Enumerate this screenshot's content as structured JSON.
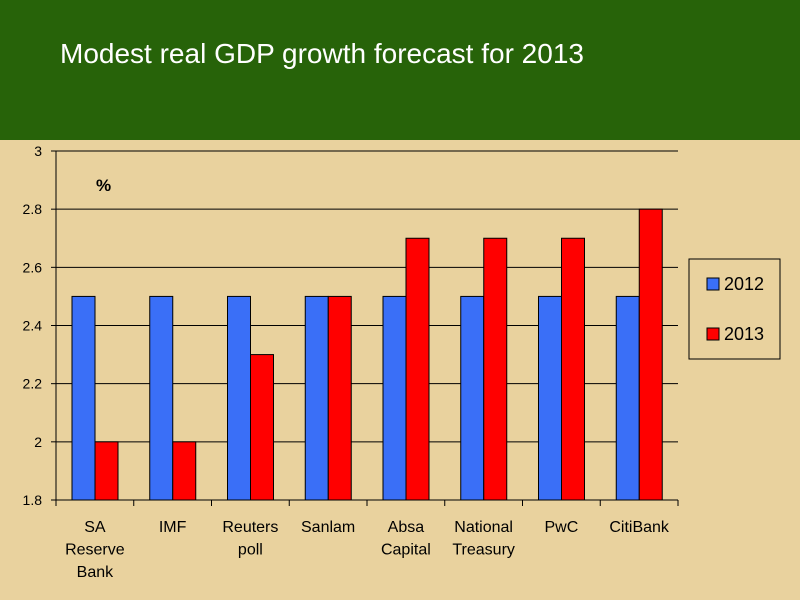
{
  "slide": {
    "title": "Modest real GDP growth forecast for 2013"
  },
  "colors": {
    "header_bg": "#276309",
    "page_bg": "#e9d29e",
    "series_2012": "#3a6ff7",
    "series_2013": "#ff0000"
  },
  "chart_data": {
    "type": "bar",
    "title": "",
    "unit_label": "%",
    "xlabel": "",
    "ylabel": "",
    "categories": [
      [
        "SA",
        "Reserve",
        "Bank"
      ],
      [
        "IMF"
      ],
      [
        "Reuters",
        "poll"
      ],
      [
        "Sanlam"
      ],
      [
        "Absa",
        "Capital"
      ],
      [
        "National",
        "Treasury"
      ],
      [
        "PwC"
      ],
      [
        "CitiBank"
      ]
    ],
    "series": [
      {
        "name": "2012",
        "color": "#3a6ff7",
        "values": [
          2.5,
          2.5,
          2.5,
          2.5,
          2.5,
          2.5,
          2.5,
          2.5
        ]
      },
      {
        "name": "2013",
        "color": "#ff0000",
        "values": [
          2.0,
          2.0,
          2.3,
          2.5,
          2.7,
          2.7,
          2.7,
          2.8
        ]
      }
    ],
    "ylim": [
      1.8,
      3.0
    ],
    "yticks": [
      "1.8",
      "2",
      "2.2",
      "2.4",
      "2.6",
      "2.8",
      "3"
    ],
    "grid": true,
    "legend_position": "right"
  }
}
